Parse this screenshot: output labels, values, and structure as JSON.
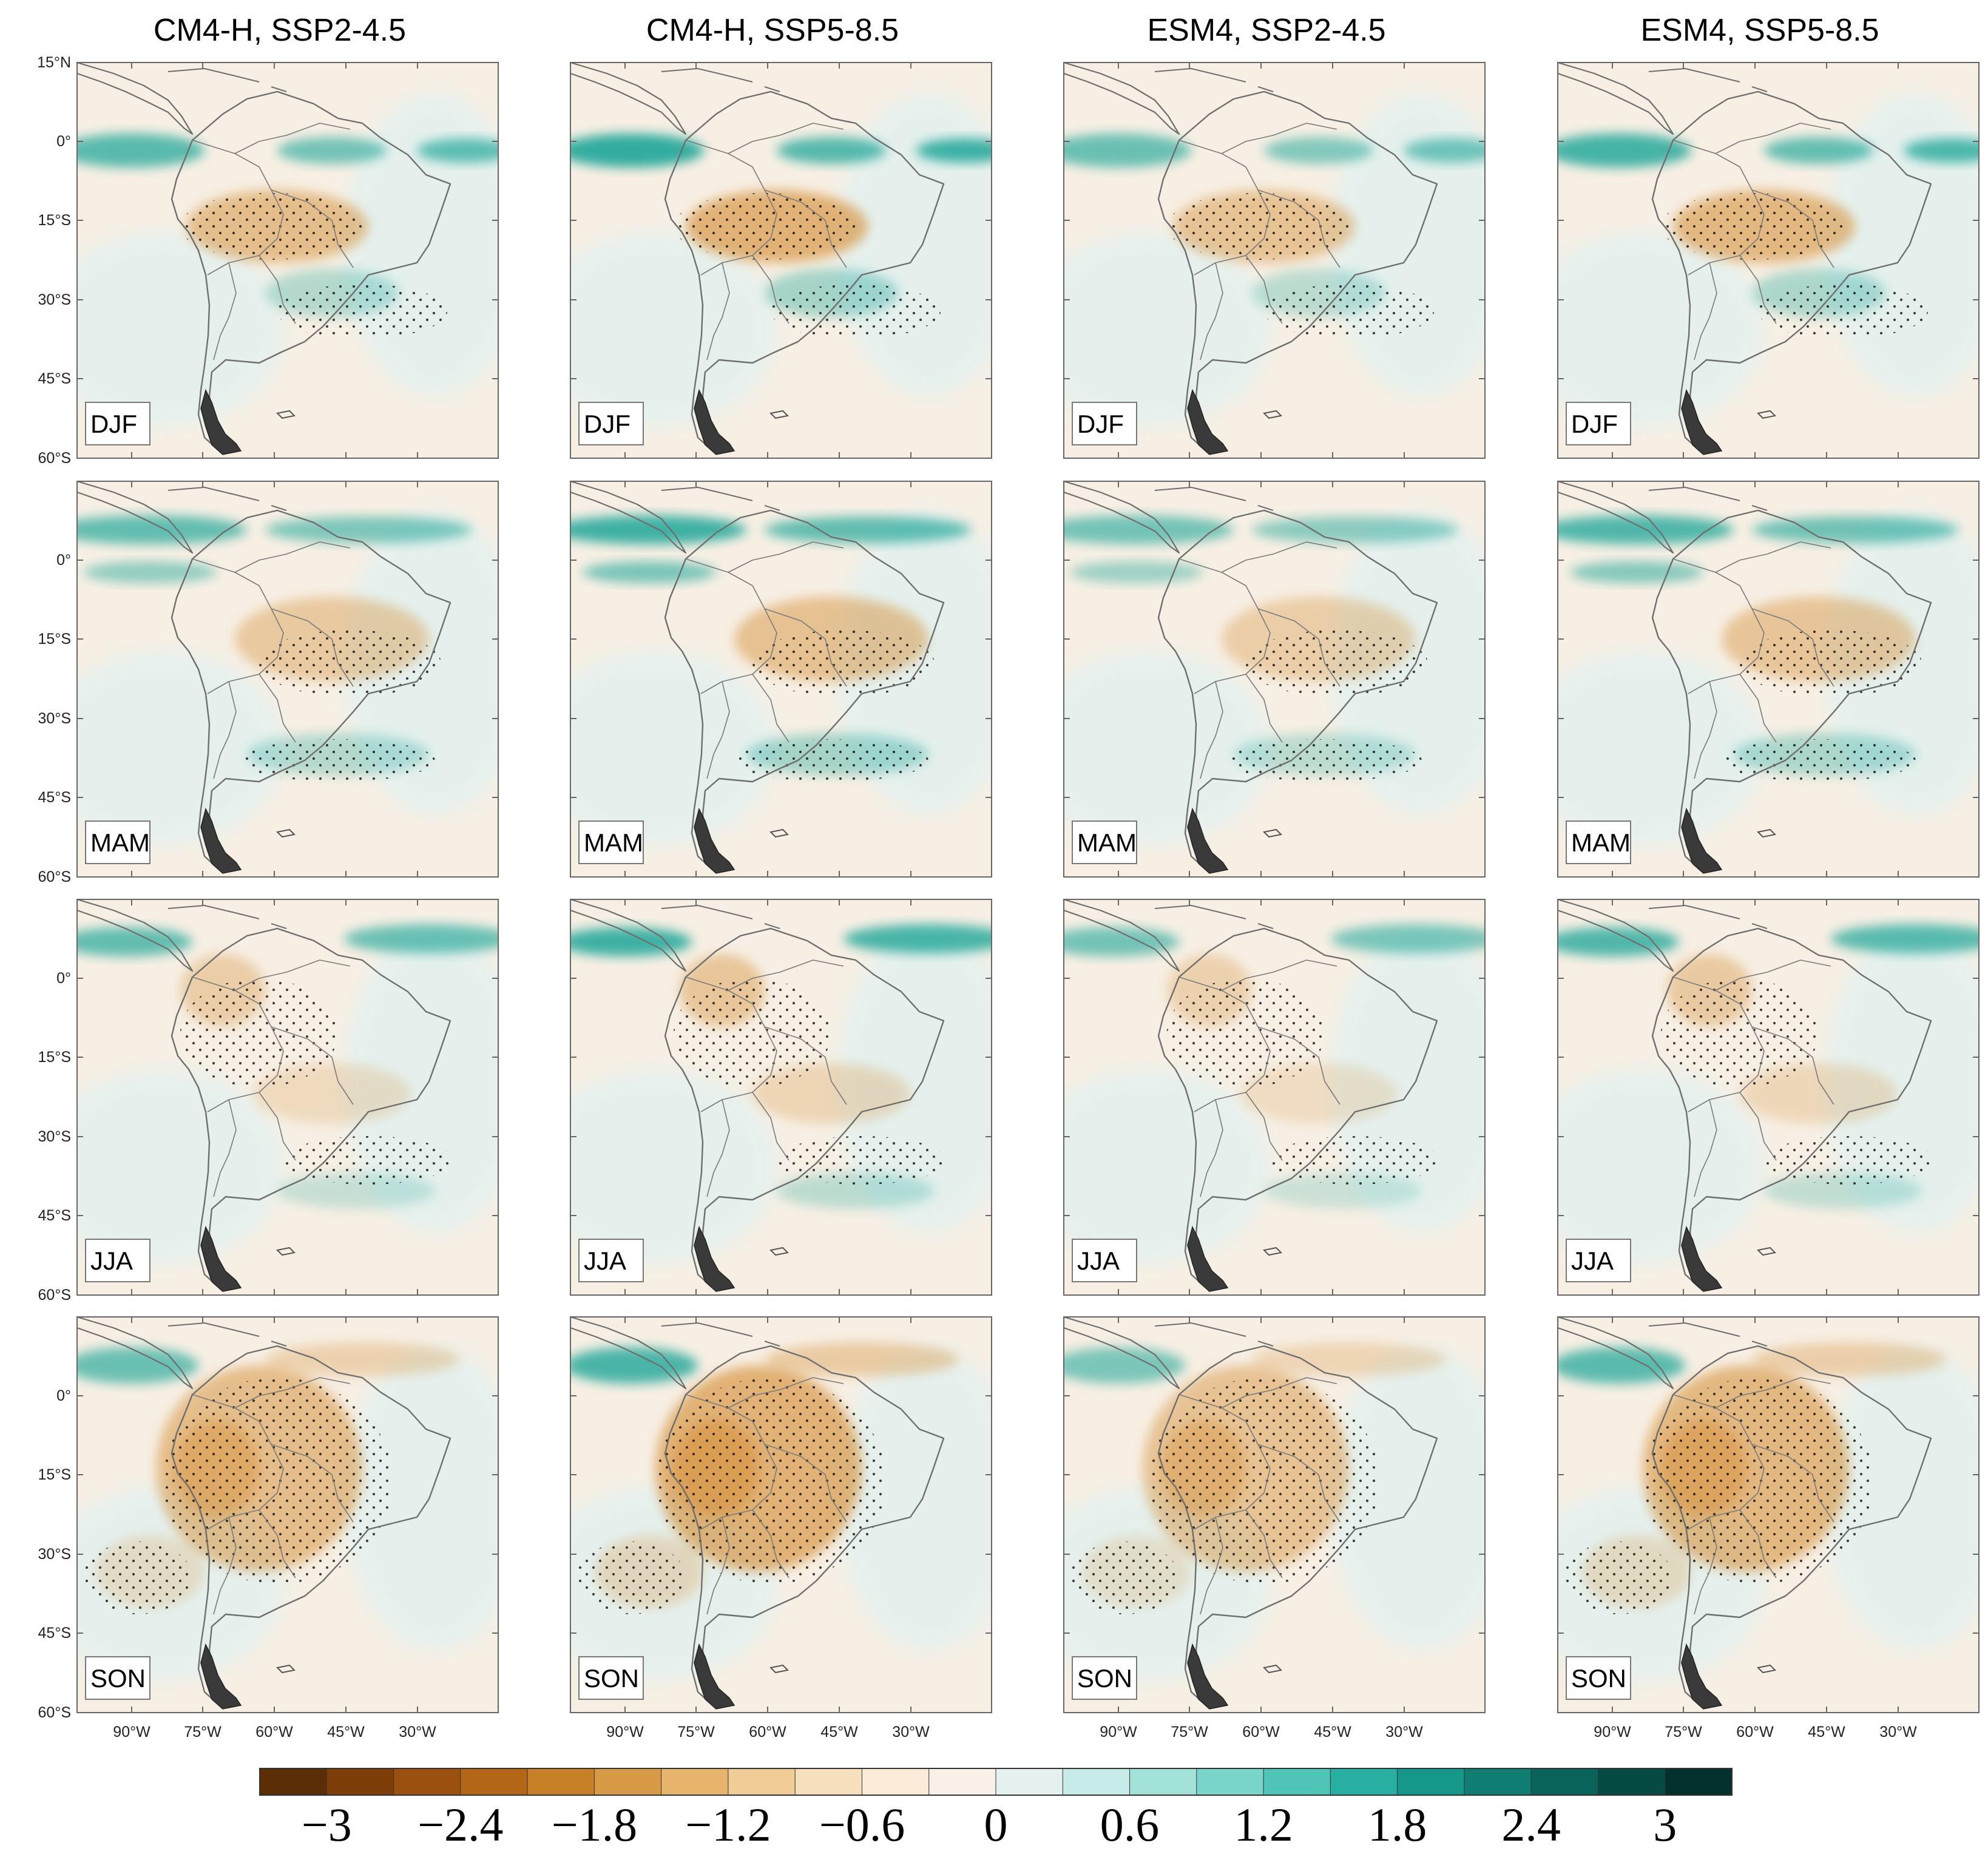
{
  "figure": {
    "columns": [
      {
        "title": "CM4-H, SSP2-4.5",
        "id": "cm4h-ssp245"
      },
      {
        "title": "CM4-H, SSP5-8.5",
        "id": "cm4h-ssp585"
      },
      {
        "title": "ESM4, SSP2-4.5",
        "id": "esm4-ssp245"
      },
      {
        "title": "ESM4, SSP5-8.5",
        "id": "esm4-ssp585"
      }
    ],
    "rows": [
      {
        "season": "DJF"
      },
      {
        "season": "MAM"
      },
      {
        "season": "JJA"
      },
      {
        "season": "SON"
      }
    ],
    "lat_ticks": [
      "15°N",
      "0°",
      "15°S",
      "30°S",
      "45°S",
      "60°S"
    ],
    "lon_ticks": [
      "90°W",
      "75°W",
      "60°W",
      "45°W",
      "30°W"
    ]
  },
  "colorbar": {
    "colors": [
      "#5c2e06",
      "#7d3e08",
      "#9b5010",
      "#b46617",
      "#c88026",
      "#d99a45",
      "#e6b46c",
      "#f0cc97",
      "#f6dfbd",
      "#faecd8",
      "#f8f1e8",
      "#e4f1ef",
      "#c7ebe6",
      "#a3e2d9",
      "#79d5c9",
      "#4ec5b6",
      "#27b0a1",
      "#15978a",
      "#0f7d72",
      "#0a635b",
      "#064a44",
      "#03322e"
    ],
    "labels": [
      "−3",
      "−2.4",
      "−1.8",
      "−1.2",
      "−0.6",
      "0",
      "0.6",
      "1.2",
      "1.8",
      "2.4",
      "3"
    ]
  },
  "palette": {
    "background": "#f7efe4",
    "ocean_light": "#e4f1ef",
    "wet": "#1fa598",
    "dry": "#d58e35",
    "coastline": "#6e6e6e"
  }
}
